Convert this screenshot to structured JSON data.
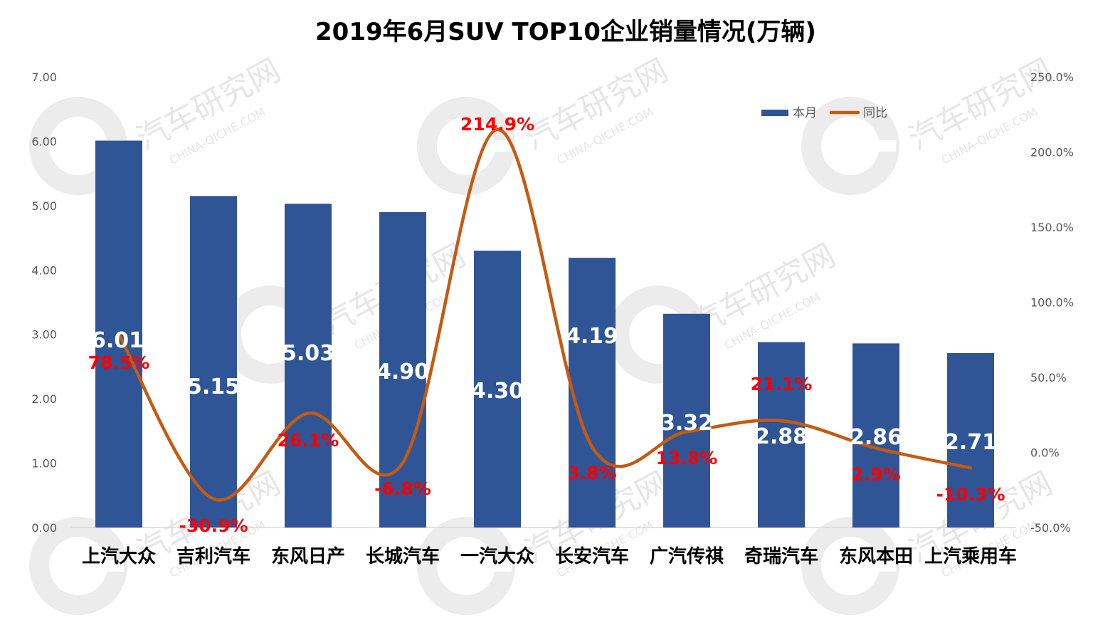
{
  "chart_data": {
    "type": "bar",
    "title": "2019年6月SUV TOP10企业销量情况(万辆)",
    "categories": [
      "上汽大众",
      "吉利汽车",
      "东风日产",
      "长城汽车",
      "一汽大众",
      "长安汽车",
      "广汽传祺",
      "奇瑞汽车",
      "东风本田",
      "上汽乘用车"
    ],
    "series": [
      {
        "name": "本月",
        "type": "bar",
        "axis": "left",
        "values": [
          6.01,
          5.15,
          5.03,
          4.9,
          4.3,
          4.19,
          3.32,
          2.88,
          2.86,
          2.71
        ],
        "labels": [
          "6.01",
          "5.15",
          "5.03",
          "4.90",
          "4.30",
          "4.19",
          "3.32",
          "2.88",
          "2.86",
          "2.71"
        ],
        "color": "#2F5597"
      },
      {
        "name": "同比",
        "type": "line",
        "axis": "right",
        "values": [
          78.5,
          -30.9,
          26.1,
          -6.8,
          214.9,
          3.8,
          13.8,
          21.1,
          2.9,
          -10.3
        ],
        "labels": [
          "78.5%",
          "-30.9%",
          "26.1%",
          "-6.8%",
          "214.9%",
          "3.8%",
          "13.8%",
          "21.1%",
          "2.9%",
          "-10.3%"
        ],
        "color": "#C55A11",
        "label_color": "#FF0000"
      }
    ],
    "y_left": {
      "min": 0,
      "max": 7,
      "step": 1,
      "ticks": [
        "0.00",
        "1.00",
        "2.00",
        "3.00",
        "4.00",
        "5.00",
        "6.00",
        "7.00"
      ]
    },
    "y_right": {
      "min": -50,
      "max": 250,
      "step": 50,
      "ticks": [
        "-50.0%",
        "0.0%",
        "50.0%",
        "100.0%",
        "150.0%",
        "200.0%",
        "250.0%"
      ]
    },
    "grid": false,
    "legend": {
      "position": "top-right",
      "items": [
        "本月",
        "同比"
      ]
    }
  },
  "watermark": {
    "title": "汽车研究网",
    "subtitle": "CHINA-QICHE.COM"
  }
}
